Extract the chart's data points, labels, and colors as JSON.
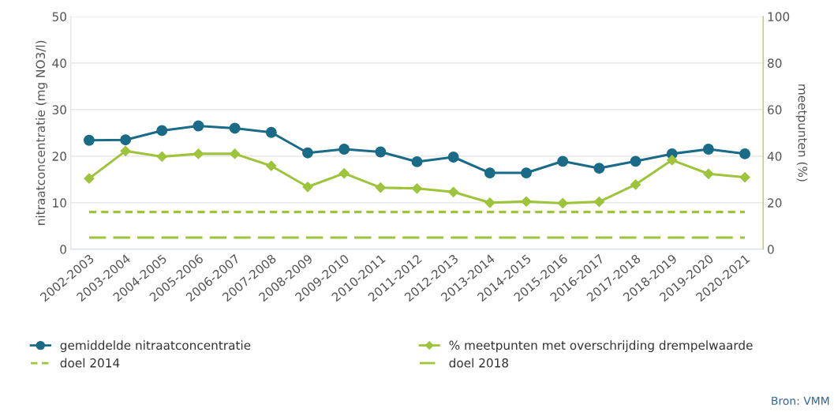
{
  "chart_data": {
    "type": "line",
    "ylabel": "nitraatconcentratie (mg NO3/l)",
    "y2label": "meetpunten (%)",
    "categories": [
      "2002-2003",
      "2003-2004",
      "2004-2005",
      "2005-2006",
      "2006-2007",
      "2007-2008",
      "2008-2009",
      "2009-2010",
      "2010-2011",
      "2011-2012",
      "2012-2013",
      "2013-2014",
      "2014-2015",
      "2015-2016",
      "2016-2017",
      "2017-2018",
      "2018-2019",
      "2019-2020",
      "2020-2021"
    ],
    "series": [
      {
        "name": "gemiddelde nitraatconcentratie",
        "color": "#1a6b87",
        "marker": "circle",
        "values": [
          23.4,
          23.5,
          25.5,
          26.5,
          26.0,
          25.1,
          20.7,
          21.5,
          20.9,
          18.8,
          19.8,
          16.4,
          16.4,
          18.9,
          17.4,
          18.9,
          20.5,
          21.5,
          20.5
        ]
      },
      {
        "name": "% meetpunten met overschrijding drempelwaarde",
        "color": "#9dc43a",
        "marker": "diamond",
        "axis": "y2",
        "values": [
          30.4,
          42.2,
          39.8,
          41,
          41,
          35.8,
          26.8,
          32.6,
          26.5,
          26.1,
          24.6,
          20.0,
          20.5,
          19.8,
          20.4,
          27.8,
          38.3,
          32.4,
          30.9
        ]
      }
    ],
    "ref_lines": [
      {
        "axis": "y2",
        "value": 16,
        "label": "doel 2014",
        "color": "#9dc43a",
        "line_style": "dashed"
      },
      {
        "axis": "y2",
        "value": 5,
        "label": "doel 2018",
        "color": "#9dc43a",
        "line_style": "dashed"
      }
    ],
    "ylim": [
      0,
      50
    ],
    "yticks": [
      0,
      10,
      20,
      30,
      40,
      50
    ],
    "y2lim": [
      0,
      100
    ],
    "y2ticks": [
      0,
      20,
      40,
      60,
      80,
      100
    ],
    "grid": "y",
    "legend": "bottom",
    "line_style": "solid",
    "annotations": [
      "Bron: VMM"
    ]
  }
}
